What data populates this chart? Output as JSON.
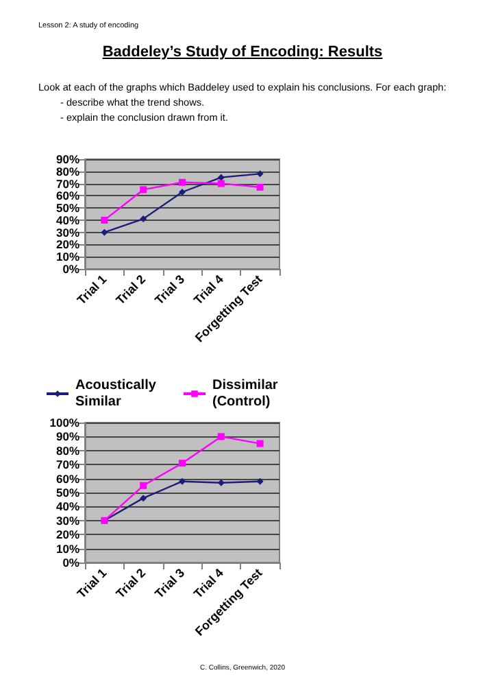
{
  "chart_data": [
    {
      "type": "line",
      "title": "Baddeley’s Study of Encoding: Results",
      "annotations": [
        "Lesson 2: A study of encoding",
        "Look at each of the graphs which Baddeley used to explain his conclusions. For each graph:",
        "-  describe what the trend shows.",
        "-  explain the conclusion drawn from it."
      ],
      "categories": [
        "Trial 1",
        "Trial 2",
        "Trial 3",
        "Trial 4",
        "Forgetting Test"
      ],
      "series": [
        {
          "color": "#1c1c7a",
          "marker": "diamond",
          "values": [
            30,
            41,
            63,
            75,
            78
          ]
        },
        {
          "color": "#ff00ff",
          "marker": "square",
          "values": [
            40,
            65,
            71,
            70,
            67
          ]
        }
      ],
      "ylim": [
        0,
        90
      ],
      "yticks": [
        {
          "value": 0,
          "label": "0%"
        },
        {
          "value": 10,
          "label": "10%"
        },
        {
          "value": 20,
          "label": "20%"
        },
        {
          "value": 30,
          "label": "30%"
        },
        {
          "value": 40,
          "label": "40%"
        },
        {
          "value": 50,
          "label": "50%"
        },
        {
          "value": 60,
          "label": "60%"
        },
        {
          "value": 70,
          "label": "70%"
        },
        {
          "value": 80,
          "label": "80%"
        },
        {
          "value": 90,
          "label": "90%"
        }
      ],
      "grid": "y",
      "legend": false
    },
    {
      "type": "line",
      "annotations": [
        "C. Collins, Greenwich, 2020"
      ],
      "categories": [
        "Trial 1",
        "Trial 2",
        "Trial 3",
        "Trial 4",
        "Forgetting Test"
      ],
      "series": [
        {
          "name": "Acoustically Similar",
          "color": "#1c1c7a",
          "marker": "diamond",
          "values": [
            30,
            46,
            58,
            57,
            58
          ]
        },
        {
          "name": "Dissimilar (Control)",
          "color": "#ff00ff",
          "marker": "square",
          "values": [
            30,
            55,
            71,
            90,
            85
          ]
        }
      ],
      "ylim": [
        0,
        100
      ],
      "yticks": [
        {
          "value": 0,
          "label": "0%"
        },
        {
          "value": 10,
          "label": "10%"
        },
        {
          "value": 20,
          "label": "20%"
        },
        {
          "value": 30,
          "label": "30%"
        },
        {
          "value": 40,
          "label": "40%"
        },
        {
          "value": 50,
          "label": "50%"
        },
        {
          "value": 60,
          "label": "60%"
        },
        {
          "value": 70,
          "label": "70%"
        },
        {
          "value": 80,
          "label": "80%"
        },
        {
          "value": 90,
          "label": "90%"
        },
        {
          "value": 100,
          "label": "100%"
        }
      ],
      "grid": "y",
      "legend": "top left"
    }
  ]
}
